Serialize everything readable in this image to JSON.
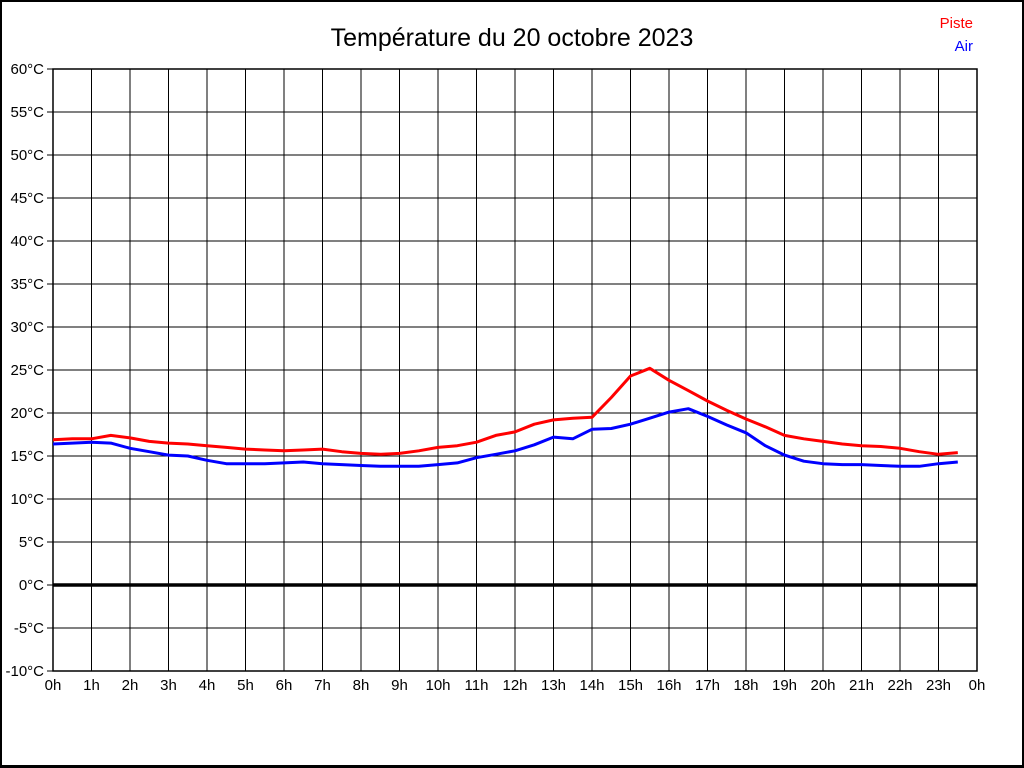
{
  "title": "Température du 20 octobre 2023",
  "legend": {
    "piste_label": "Piste",
    "piste_color": "#ff0000",
    "air_label": "Air",
    "air_color": "#0000ff"
  },
  "chart_data": {
    "type": "line",
    "title": "Température du 20 octobre 2023",
    "xlabel": "",
    "ylabel": "",
    "xlim": [
      0,
      24
    ],
    "ylim": [
      -10,
      60
    ],
    "y_tick_step": 5,
    "grid": "on",
    "legend_position": "top-right",
    "zero_line": true,
    "x_tick_labels": [
      "0h",
      "1h",
      "2h",
      "3h",
      "4h",
      "5h",
      "6h",
      "7h",
      "8h",
      "9h",
      "10h",
      "11h",
      "12h",
      "13h",
      "14h",
      "15h",
      "16h",
      "17h",
      "18h",
      "19h",
      "20h",
      "21h",
      "22h",
      "23h",
      "0h"
    ],
    "y_tick_labels": [
      "60°C",
      "55°C",
      "50°C",
      "45°C",
      "40°C",
      "35°C",
      "30°C",
      "25°C",
      "20°C",
      "15°C",
      "10°C",
      "5°C",
      "0°C",
      "-5°C",
      "-10°C"
    ],
    "x": [
      0,
      0.5,
      1,
      1.5,
      2,
      2.5,
      3,
      3.5,
      4,
      4.5,
      5,
      5.5,
      6,
      6.5,
      7,
      7.5,
      8,
      8.5,
      9,
      9.5,
      10,
      10.5,
      11,
      11.5,
      12,
      12.5,
      13,
      13.5,
      14,
      14.5,
      15,
      15.5,
      16,
      16.5,
      17,
      17.5,
      18,
      18.5,
      19,
      19.5,
      20,
      20.5,
      21,
      21.5,
      22,
      22.5,
      23,
      23.5
    ],
    "series": [
      {
        "name": "Piste",
        "color": "#ff0000",
        "values": [
          16.9,
          17.0,
          17.0,
          17.4,
          17.1,
          16.7,
          16.5,
          16.4,
          16.2,
          16.0,
          15.8,
          15.7,
          15.6,
          15.7,
          15.8,
          15.5,
          15.3,
          15.2,
          15.3,
          15.6,
          16.0,
          16.2,
          16.6,
          17.4,
          17.8,
          18.7,
          19.2,
          19.4,
          19.5,
          21.8,
          24.3,
          25.2,
          23.8,
          22.6,
          21.4,
          20.3,
          19.3,
          18.4,
          17.4,
          17.0,
          16.7,
          16.4,
          16.2,
          16.1,
          15.9,
          15.5,
          15.2,
          15.4
        ]
      },
      {
        "name": "Air",
        "color": "#0000ff",
        "values": [
          16.4,
          16.5,
          16.6,
          16.5,
          15.9,
          15.5,
          15.1,
          15.0,
          14.5,
          14.1,
          14.1,
          14.1,
          14.2,
          14.3,
          14.1,
          14.0,
          13.9,
          13.8,
          13.8,
          13.8,
          14.0,
          14.2,
          14.8,
          15.2,
          15.6,
          16.3,
          17.2,
          17.0,
          18.1,
          18.2,
          18.7,
          19.4,
          20.1,
          20.5,
          19.6,
          18.6,
          17.7,
          16.2,
          15.1,
          14.4,
          14.1,
          14.0,
          14.0,
          13.9,
          13.8,
          13.8,
          14.1,
          14.3
        ]
      }
    ]
  }
}
